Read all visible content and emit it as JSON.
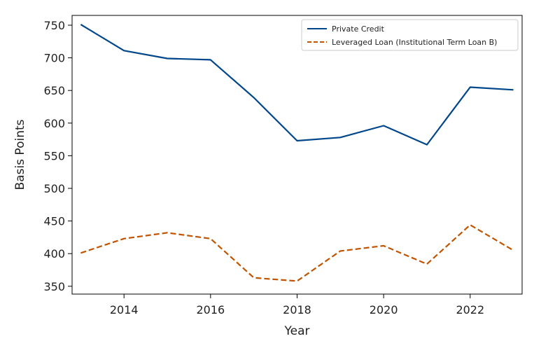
{
  "chart_data": {
    "type": "line",
    "title": "",
    "xlabel": "Year",
    "ylabel": "Basis Points",
    "x": [
      2013,
      2014,
      2015,
      2016,
      2017,
      2018,
      2019,
      2020,
      2021,
      2022,
      2023
    ],
    "xlim": [
      2012.8,
      2023.2
    ],
    "ylim": [
      338,
      765
    ],
    "xticks": [
      2014,
      2016,
      2018,
      2020,
      2022
    ],
    "yticks": [
      350,
      400,
      450,
      500,
      550,
      600,
      650,
      700,
      750
    ],
    "grid": false,
    "legend_position": "upper-right",
    "series": [
      {
        "name": "Private Credit",
        "style": "solid",
        "color": "#00468b",
        "values": [
          751,
          711,
          699,
          697,
          639,
          573,
          578,
          596,
          567,
          655,
          651
        ]
      },
      {
        "name": "Leveraged Loan (Institutional Term Loan B)",
        "style": "dashed",
        "color": "#c05400",
        "values": [
          401,
          423,
          432,
          423,
          363,
          358,
          404,
          412,
          384,
          444,
          405
        ]
      }
    ]
  }
}
